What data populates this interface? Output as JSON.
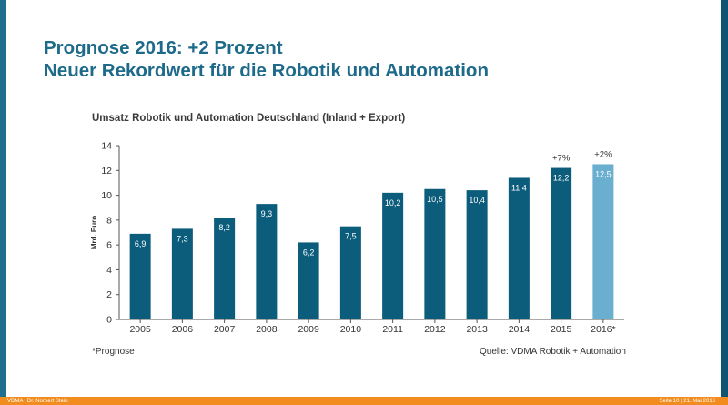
{
  "slide": {
    "title_line1": "Prognose 2016: +2 Prozent",
    "title_line2": "Neuer Rekordwert für die Robotik und Automation",
    "footnote": "*Prognose",
    "source": "Quelle: VDMA Robotik + Automation",
    "footer_left": "VDMA | Dr. Norbert Stein",
    "footer_right": "Seite 10 | 21. Mai 2016"
  },
  "colors": {
    "bar": "#0c5c7c",
    "bar_forecast": "#6aaed0",
    "accent_title": "#1d6a8a",
    "footer": "#f28c1e"
  },
  "chart_data": {
    "type": "bar",
    "title": "Umsatz Robotik und Automation Deutschland (Inland + Export)",
    "ylabel": "Mrd. Euro",
    "xlabel": "",
    "ylim": [
      0,
      14
    ],
    "yticks": [
      0,
      2,
      4,
      6,
      8,
      10,
      12,
      14
    ],
    "categories": [
      "2005",
      "2006",
      "2007",
      "2008",
      "2009",
      "2010",
      "2011",
      "2012",
      "2013",
      "2014",
      "2015",
      "2016*"
    ],
    "values": [
      6.9,
      7.3,
      8.2,
      9.3,
      6.2,
      7.5,
      10.2,
      10.5,
      10.4,
      11.4,
      12.2,
      12.5
    ],
    "value_labels": [
      "6,9",
      "7,3",
      "8,2",
      "9,3",
      "6,2",
      "7,5",
      "10,2",
      "10,5",
      "10,4",
      "11,4",
      "12,2",
      "12,5"
    ],
    "forecast": [
      false,
      false,
      false,
      false,
      false,
      false,
      false,
      false,
      false,
      false,
      false,
      true
    ],
    "annotations": [
      {
        "category": "2015",
        "text": "+7%"
      },
      {
        "category": "2016*",
        "text": "+2%"
      }
    ],
    "grid": false,
    "legend": "none"
  }
}
